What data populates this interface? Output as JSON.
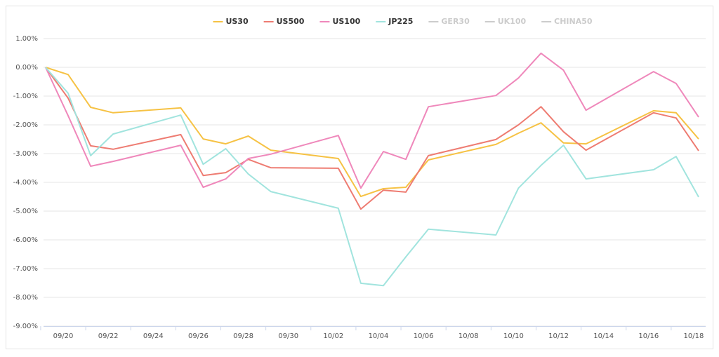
{
  "chart_data": {
    "type": "line",
    "series": [
      {
        "name": "US30",
        "color": "#f6c244",
        "values": [
          0,
          -0.25,
          -1.39,
          -1.58,
          -1.41,
          -2.49,
          -2.66,
          -2.39,
          -2.88,
          -3.17,
          -4.49,
          -4.22,
          -4.17,
          -3.22,
          -2.68,
          -2.29,
          -1.93,
          -2.63,
          -2.66,
          -1.51,
          -1.58,
          -2.49
        ]
      },
      {
        "name": "US500",
        "color": "#ee7c72",
        "values": [
          0,
          -1.07,
          -2.73,
          -2.85,
          -2.34,
          -3.76,
          -3.66,
          -3.2,
          -3.49,
          -3.51,
          -4.93,
          -4.27,
          -4.34,
          -3.07,
          -2.51,
          -2.0,
          -1.37,
          -2.24,
          -2.88,
          -1.58,
          -1.76,
          -2.9
        ]
      },
      {
        "name": "US100",
        "color": "#ef88bb",
        "values": [
          0,
          -1.68,
          -3.44,
          -3.27,
          -2.71,
          -4.17,
          -3.88,
          -3.17,
          -3.02,
          -2.37,
          -4.2,
          -2.93,
          -3.2,
          -1.37,
          -0.98,
          -0.37,
          0.49,
          -0.1,
          -1.49,
          -0.15,
          -0.56,
          -1.73
        ]
      },
      {
        "name": "JP225",
        "color": "#a1e4de",
        "values": [
          0,
          -0.9,
          -3.07,
          -2.32,
          -1.66,
          -3.37,
          -2.83,
          -3.71,
          -4.32,
          -4.9,
          -7.51,
          -7.59,
          -6.59,
          -5.63,
          -5.83,
          -4.2,
          -3.41,
          -2.71,
          -3.88,
          -3.56,
          -3.1,
          -4.51
        ]
      },
      {
        "name": "GER30",
        "color": "#cccccc",
        "hidden": true
      },
      {
        "name": "UK100",
        "color": "#cccccc",
        "hidden": true
      },
      {
        "name": "CHINA50",
        "color": "#cccccc",
        "hidden": true
      }
    ],
    "x": [
      "09/19",
      "09/20",
      "09/21",
      "09/22",
      "09/25",
      "09/26",
      "09/27",
      "09/28",
      "09/29",
      "10/02",
      "10/03",
      "10/04",
      "10/05",
      "10/06",
      "10/09",
      "10/10",
      "10/11",
      "10/12",
      "10/13",
      "10/16",
      "10/17",
      "10/18"
    ],
    "xticks": [
      "09/20",
      "09/22",
      "09/24",
      "09/26",
      "09/28",
      "09/30",
      "10/02",
      "10/04",
      "10/06",
      "10/08",
      "10/10",
      "10/12",
      "10/14",
      "10/16",
      "10/18"
    ],
    "ylim": [
      -9,
      1
    ],
    "yticks": [
      {
        "value": 1,
        "label": "1.00%"
      },
      {
        "value": 0,
        "label": "0.00%"
      },
      {
        "value": -1,
        "label": "-1.00%"
      },
      {
        "value": -2,
        "label": "-2.00%"
      },
      {
        "value": -3,
        "label": "-3.00%"
      },
      {
        "value": -4,
        "label": "-4.00%"
      },
      {
        "value": -5,
        "label": "-5.00%"
      },
      {
        "value": -6,
        "label": "-6.00%"
      },
      {
        "value": -7,
        "label": "-7.00%"
      },
      {
        "value": -8,
        "label": "-8.00%"
      },
      {
        "value": -9,
        "label": "-9.00%"
      }
    ],
    "grid": true,
    "legend": "top"
  }
}
